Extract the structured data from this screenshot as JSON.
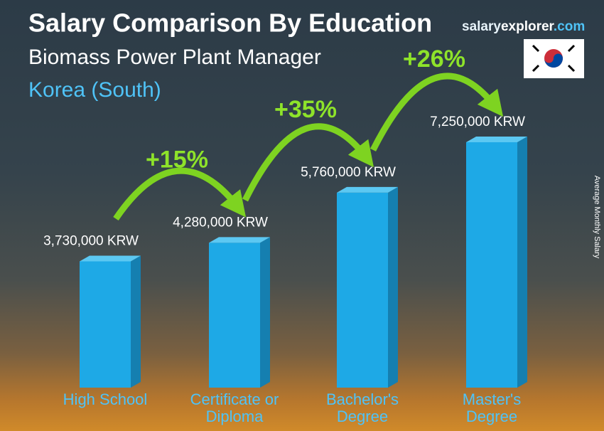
{
  "chart_data": {
    "type": "bar",
    "title": "Salary Comparison By Education",
    "subtitle": "Biomass Power Plant Manager",
    "location": "Korea (South)",
    "brand": [
      "salary",
      "explorer",
      ".com"
    ],
    "y_axis_label": "Average Monthly Salary",
    "categories": [
      "High School",
      "Certificate or Diploma",
      "Bachelor's Degree",
      "Master's Degree"
    ],
    "values": [
      3730000,
      4280000,
      5760000,
      7250000
    ],
    "value_labels": [
      "3,730,000 KRW",
      "4,280,000 KRW",
      "5,760,000 KRW",
      "7,250,000 KRW"
    ],
    "annotations": [
      "+15%",
      "+35%",
      "+26%"
    ],
    "color": "#1ea9e6"
  }
}
